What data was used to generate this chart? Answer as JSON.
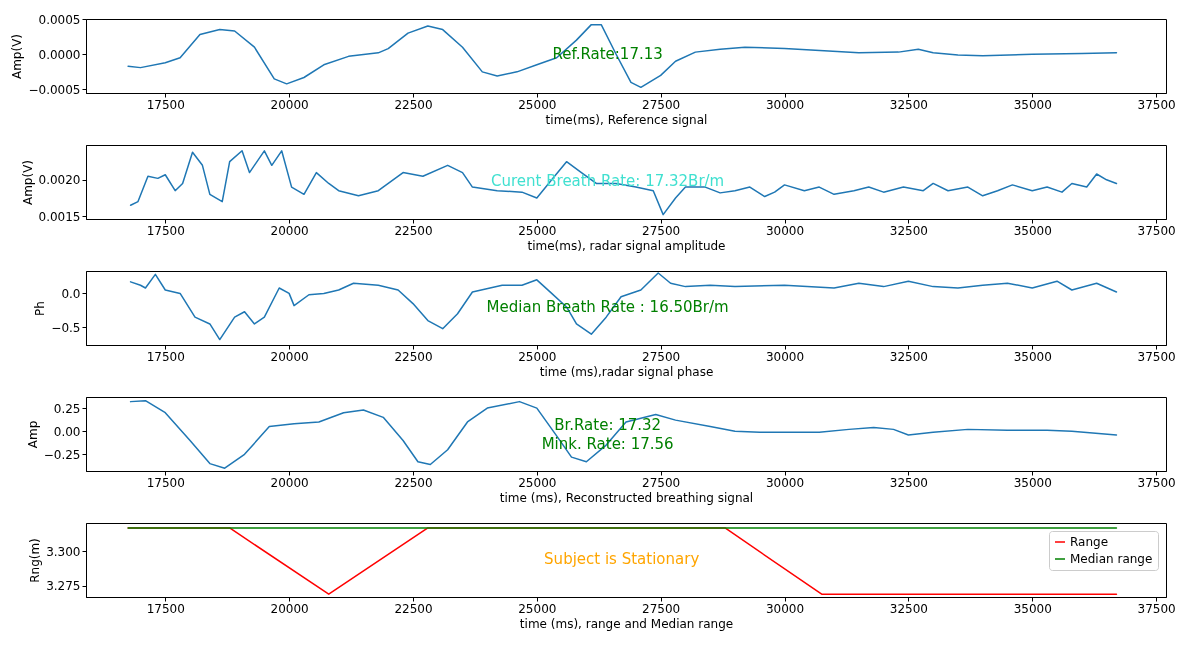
{
  "chart_data": [
    {
      "type": "line",
      "xlabel": "time(ms), Reference signal",
      "ylabel": "Amp(V)",
      "xlim": [
        15900,
        37700
      ],
      "xticks": [
        17500,
        20000,
        22500,
        25000,
        27500,
        30000,
        32500,
        35000,
        37500
      ],
      "ylim": [
        -0.00055,
        0.0005
      ],
      "yticks": [
        {
          "value": -0.0005,
          "label": "−0.0005"
        },
        {
          "value": 0,
          "label": "0.0000"
        },
        {
          "value": 0.0005,
          "label": "0.0005"
        }
      ],
      "annotations": [
        "Ref.Rate:17.13"
      ],
      "series": [
        {
          "color": "#1f77b4",
          "x": [
            16750,
            17000,
            17500,
            17800,
            18200,
            18600,
            18900,
            19300,
            19700,
            19950,
            20300,
            20700,
            21200,
            21800,
            22000,
            22400,
            22800,
            23100,
            23500,
            23900,
            24200,
            24600,
            25000,
            25400,
            25800,
            26100,
            26300,
            26600,
            26900,
            27100,
            27500,
            27800,
            28200,
            28700,
            29200,
            30000,
            30800,
            31500,
            32300,
            32700,
            33000,
            33500,
            34000,
            35000,
            36000,
            36700
          ],
          "values": [
            -0.00017,
            -0.00019,
            -0.00012,
            -5e-05,
            0.00028,
            0.00035,
            0.00033,
            0.0001,
            -0.00035,
            -0.00042,
            -0.00033,
            -0.00015,
            -3e-05,
            2e-05,
            8e-05,
            0.0003,
            0.0004,
            0.00035,
            0.0001,
            -0.00025,
            -0.00031,
            -0.00025,
            -0.00015,
            -5e-05,
            0.0002,
            0.00042,
            0.00042,
            0.0,
            -0.0004,
            -0.00047,
            -0.0003,
            -0.0001,
            3e-05,
            7e-05,
            0.0001,
            8e-05,
            5e-05,
            2e-05,
            3e-05,
            7e-05,
            2e-05,
            -1e-05,
            -2e-05,
            0.0,
            1e-05,
            2e-05
          ]
        }
      ]
    },
    {
      "type": "line",
      "xlabel": "time(ms), radar signal amplitude",
      "ylabel": "Amp(V)",
      "xlim": [
        15900,
        37700
      ],
      "xticks": [
        17500,
        20000,
        22500,
        25000,
        27500,
        30000,
        32500,
        35000,
        37500
      ],
      "ylim": [
        0.00146,
        0.00248
      ],
      "yticks": [
        {
          "value": 0.0015,
          "label": "0.0015"
        },
        {
          "value": 0.002,
          "label": "0.0020"
        }
      ],
      "annotations": [
        "Curent Breath Rate: 17.32Br/m"
      ],
      "series": [
        {
          "color": "#1f77b4",
          "x": [
            16800,
            16950,
            17150,
            17350,
            17500,
            17700,
            17850,
            18050,
            18250,
            18400,
            18650,
            18800,
            19050,
            19200,
            19500,
            19650,
            19850,
            20050,
            20300,
            20550,
            20800,
            21000,
            21400,
            21800,
            22300,
            22700,
            23200,
            23500,
            23700,
            24200,
            24700,
            25000,
            25300,
            25600,
            25900,
            26200,
            26600,
            27000,
            27350,
            27550,
            27800,
            28000,
            28400,
            28700,
            29000,
            29300,
            29600,
            29800,
            30000,
            30400,
            30700,
            31000,
            31400,
            31700,
            32000,
            32400,
            32800,
            33000,
            33300,
            33700,
            34000,
            34300,
            34600,
            35000,
            35300,
            35600,
            35800,
            36100,
            36300,
            36500,
            36700
          ],
          "values": [
            0.00165,
            0.0017,
            0.00205,
            0.00202,
            0.00207,
            0.00185,
            0.00195,
            0.00238,
            0.0022,
            0.0018,
            0.0017,
            0.00225,
            0.0024,
            0.0021,
            0.0024,
            0.0022,
            0.0024,
            0.0019,
            0.0018,
            0.0021,
            0.00195,
            0.00185,
            0.00178,
            0.00185,
            0.0021,
            0.00205,
            0.0022,
            0.0021,
            0.0019,
            0.00185,
            0.00183,
            0.00175,
            0.002,
            0.00225,
            0.0021,
            0.00195,
            0.00195,
            0.0019,
            0.00185,
            0.00152,
            0.00175,
            0.0019,
            0.0019,
            0.00182,
            0.00185,
            0.0019,
            0.00177,
            0.00183,
            0.00193,
            0.00185,
            0.0019,
            0.0018,
            0.00185,
            0.0019,
            0.00183,
            0.0019,
            0.00185,
            0.00195,
            0.00185,
            0.0019,
            0.00178,
            0.00185,
            0.00193,
            0.00185,
            0.0019,
            0.00183,
            0.00195,
            0.0019,
            0.00208,
            0.002,
            0.00195
          ]
        }
      ]
    },
    {
      "type": "line",
      "xlabel": "time (ms),radar signal phase",
      "ylabel": "Ph",
      "xlim": [
        15900,
        37700
      ],
      "xticks": [
        17500,
        20000,
        22500,
        25000,
        27500,
        30000,
        32500,
        35000,
        37500
      ],
      "ylim": [
        -0.76,
        0.33
      ],
      "yticks": [
        {
          "value": -0.5,
          "label": "−0.5"
        },
        {
          "value": 0,
          "label": "0.0"
        }
      ],
      "annotations": [
        "Median Breath Rate : 16.50Br/m"
      ],
      "series": [
        {
          "color": "#1f77b4",
          "x": [
            16800,
            17000,
            17100,
            17300,
            17500,
            17800,
            18100,
            18400,
            18600,
            18900,
            19100,
            19300,
            19500,
            19800,
            20000,
            20100,
            20400,
            20700,
            21000,
            21300,
            21800,
            22200,
            22500,
            22800,
            23100,
            23400,
            23700,
            24300,
            24700,
            25000,
            25300,
            25600,
            25800,
            26100,
            26400,
            26700,
            27100,
            27450,
            27700,
            28000,
            28500,
            29000,
            30000,
            31000,
            31500,
            32000,
            32500,
            33000,
            33500,
            34000,
            34500,
            35000,
            35500,
            35800,
            36300,
            36700
          ],
          "values": [
            0.17,
            0.12,
            0.08,
            0.28,
            0.05,
            0.0,
            -0.35,
            -0.45,
            -0.68,
            -0.35,
            -0.27,
            -0.45,
            -0.35,
            0.08,
            0.0,
            -0.18,
            -0.02,
            0.0,
            0.05,
            0.15,
            0.12,
            0.05,
            -0.15,
            -0.4,
            -0.52,
            -0.3,
            0.02,
            0.12,
            0.12,
            0.2,
            0.0,
            -0.2,
            -0.45,
            -0.6,
            -0.35,
            -0.05,
            0.05,
            0.3,
            0.15,
            0.1,
            0.12,
            0.1,
            0.12,
            0.08,
            0.15,
            0.1,
            0.18,
            0.1,
            0.08,
            0.12,
            0.15,
            0.08,
            0.18,
            0.05,
            0.15,
            0.02
          ]
        }
      ]
    },
    {
      "type": "line",
      "xlabel": "time (ms), Reconstructed breathing signal",
      "ylabel": "Amp",
      "xlim": [
        15900,
        37700
      ],
      "xticks": [
        17500,
        20000,
        22500,
        25000,
        27500,
        30000,
        32500,
        35000,
        37500
      ],
      "ylim": [
        -0.43,
        0.37
      ],
      "yticks": [
        {
          "value": -0.25,
          "label": "−0.25"
        },
        {
          "value": 0,
          "label": "0.00"
        },
        {
          "value": 0.25,
          "label": "0.25"
        }
      ],
      "annotations": [
        "Br.Rate: 17.32",
        "Mink. Rate: 17.56"
      ],
      "series": [
        {
          "color": "#1f77b4",
          "x": [
            16800,
            17100,
            17500,
            18000,
            18400,
            18700,
            19100,
            19600,
            20100,
            20600,
            21100,
            21500,
            21900,
            22300,
            22600,
            22850,
            23200,
            23600,
            24000,
            24650,
            25000,
            25400,
            25700,
            26000,
            26400,
            26800,
            27400,
            27800,
            28500,
            29000,
            29500,
            30000,
            30700,
            31300,
            31800,
            32200,
            32500,
            33000,
            33700,
            34500,
            35300,
            35800,
            36700
          ],
          "values": [
            0.32,
            0.33,
            0.2,
            -0.1,
            -0.35,
            -0.4,
            -0.25,
            0.05,
            0.08,
            0.1,
            0.2,
            0.23,
            0.15,
            -0.1,
            -0.33,
            -0.36,
            -0.2,
            0.1,
            0.25,
            0.32,
            0.25,
            -0.05,
            -0.28,
            -0.33,
            -0.15,
            0.1,
            0.18,
            0.12,
            0.05,
            0.0,
            -0.01,
            -0.01,
            -0.01,
            0.02,
            0.04,
            0.02,
            -0.04,
            -0.01,
            0.02,
            0.01,
            0.01,
            0.0,
            -0.04
          ]
        }
      ]
    },
    {
      "type": "line",
      "xlabel": "time (ms), range and Median range",
      "ylabel": "Rng(m)",
      "xlim": [
        15900,
        37700
      ],
      "xticks": [
        17500,
        20000,
        22500,
        25000,
        27500,
        30000,
        32500,
        35000,
        37500
      ],
      "ylim": [
        3.267,
        3.3206
      ],
      "yticks": [
        {
          "value": 3.275,
          "label": "3.275"
        },
        {
          "value": 3.3,
          "label": "3.300"
        }
      ],
      "annotations": [
        "Subject is Stationary"
      ],
      "legend": "top right",
      "series": [
        {
          "name": "Range",
          "color": "#ff0000",
          "x": [
            16750,
            18800,
            20800,
            22800,
            28800,
            30750,
            36700
          ],
          "values": [
            3.317,
            3.317,
            3.269,
            3.317,
            3.317,
            3.269,
            3.269
          ]
        },
        {
          "name": "Median range",
          "color": "#008000",
          "x": [
            16750,
            36700
          ],
          "values": [
            3.317,
            3.317
          ]
        }
      ]
    }
  ]
}
